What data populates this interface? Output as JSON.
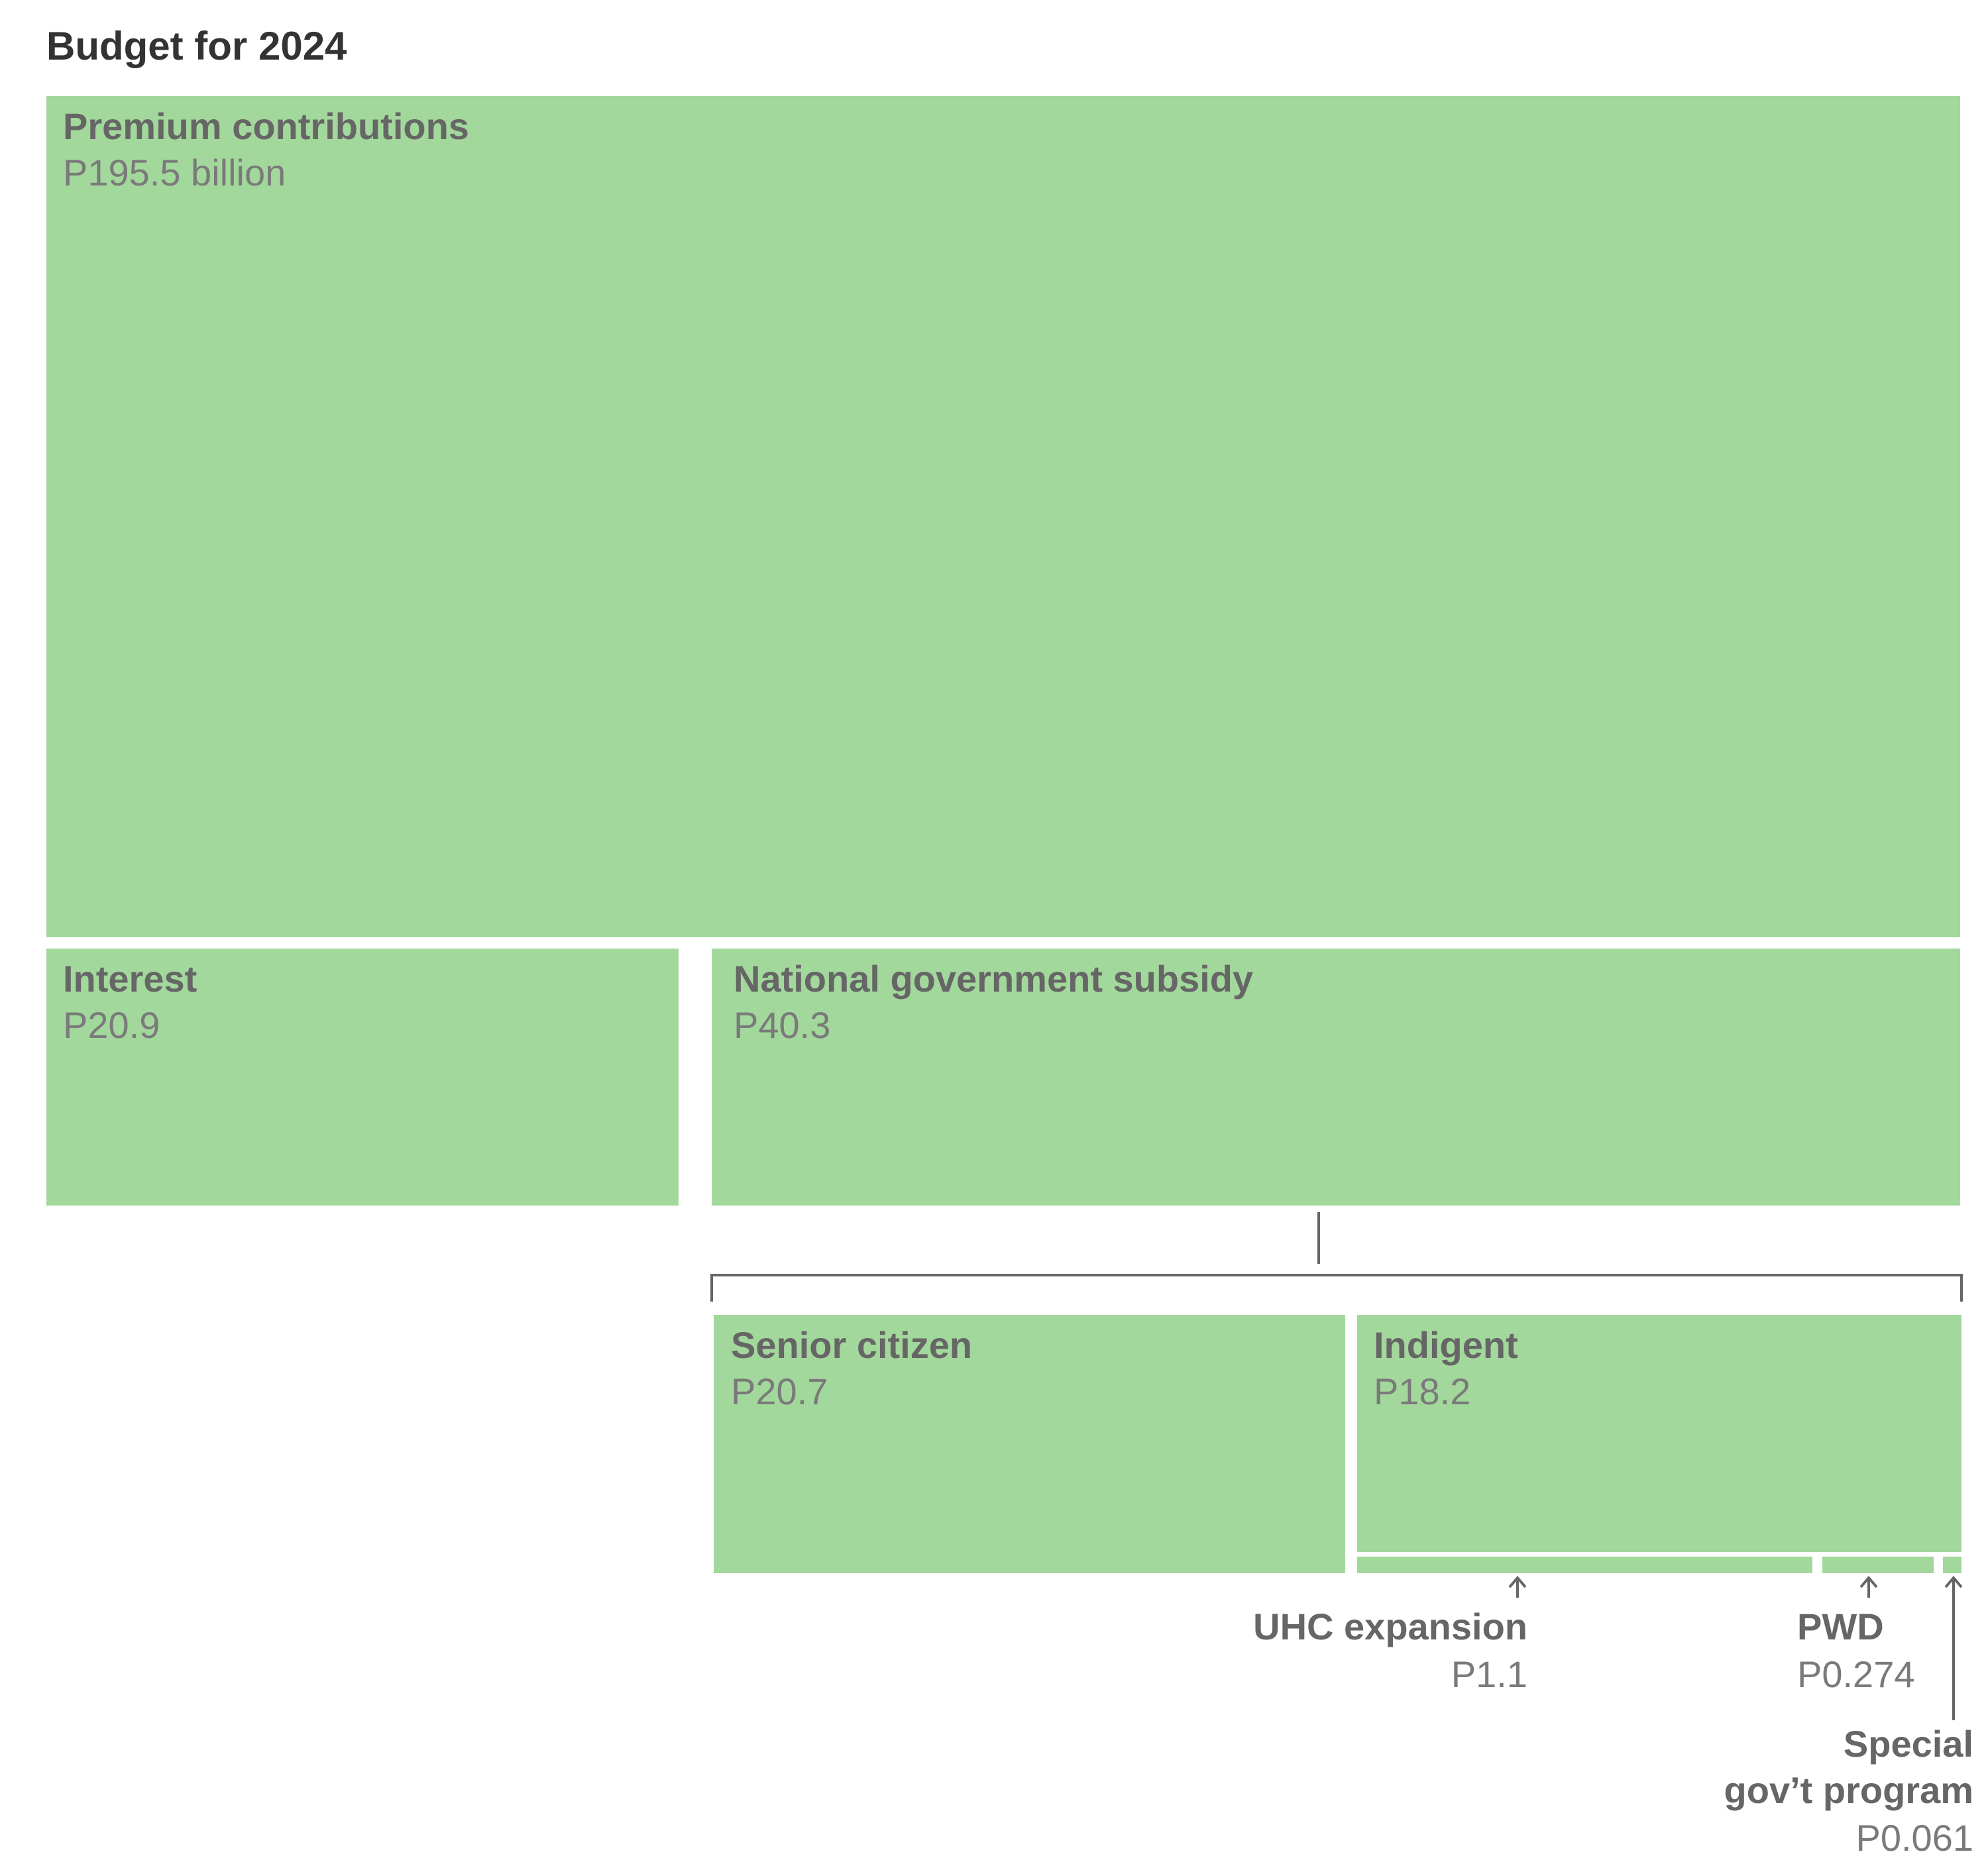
{
  "chart_data": {
    "type": "treemap",
    "title": "Budget for 2024",
    "colors": {
      "box": "#a2d89b",
      "label": "#666666",
      "value": "#7a7a7a",
      "title": "#333333",
      "line": "#666666"
    },
    "items": [
      {
        "name": "Premium contributions",
        "label": "P195.5 billion",
        "value": 195.5
      },
      {
        "name": "Interest",
        "label": "P20.9",
        "value": 20.9
      },
      {
        "name": "National government subsidy",
        "label": "P40.3",
        "value": 40.3,
        "children": [
          {
            "name": "Senior citizen",
            "label": "P20.7",
            "value": 20.7
          },
          {
            "name": "Indigent",
            "label": "P18.2",
            "value": 18.2
          },
          {
            "name": "UHC expansion",
            "label": "P1.1",
            "value": 1.1
          },
          {
            "name": "PWD",
            "label": "P0.274",
            "value": 0.274
          },
          {
            "name": "Special gov’t program",
            "name_lines": [
              "Special",
              "gov’t program"
            ],
            "label": "P0.061",
            "value": 0.061
          }
        ]
      }
    ]
  }
}
